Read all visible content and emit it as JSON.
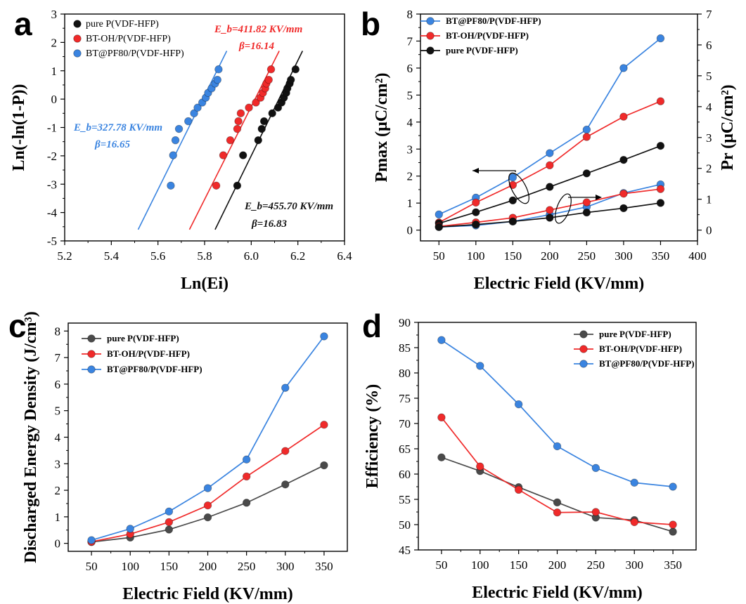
{
  "colors": {
    "black": "#111111",
    "red": "#f02a2a",
    "blue": "#3a84e0",
    "gray": "#4a4a4a"
  },
  "panels": [
    {
      "letter": "a",
      "type": "scatter",
      "xlabel": "Ln(Ei)",
      "ylabel": "Ln(-ln(1-P))",
      "xlim": [
        5.2,
        6.4
      ],
      "ylim": [
        -5,
        3
      ],
      "xticks": [
        "5.2",
        "5.4",
        "5.6",
        "5.8",
        "6.0",
        "6.2",
        "6.4"
      ],
      "yticks": [
        "-5",
        "-4",
        "-3",
        "-2",
        "-1",
        "0",
        "1",
        "2",
        "3"
      ],
      "legend": [
        "pure P(VDF-HFP)",
        "BT-OH/P(VDF-HFP)",
        "BT@PF80/P(VDF-HFP)"
      ],
      "annotations": [
        {
          "line1": "E_b=411.82 KV/mm",
          "line2": "β=16.14",
          "color": "red"
        },
        {
          "line1": "E_b=327.78 KV/mm",
          "line2": "β=16.65",
          "color": "blue"
        },
        {
          "line1": "E_b=455.70 KV/mm",
          "line2": "β=16.83",
          "color": "black"
        }
      ]
    },
    {
      "letter": "b",
      "type": "line",
      "xlabel": "Electric Field (KV/mm)",
      "ylabel": "Pmax (μC/cm²)",
      "ylabel_right": "Pr (μC/cm²)",
      "xlim": [
        25,
        400
      ],
      "ylim": [
        -0.4,
        8
      ],
      "ylim_right": [
        -0.35,
        7
      ],
      "xticks": [
        "50",
        "100",
        "150",
        "200",
        "250",
        "300",
        "350",
        "400"
      ],
      "yticks": [
        "0",
        "1",
        "2",
        "3",
        "4",
        "5",
        "6",
        "7",
        "8"
      ],
      "yticks_right": [
        "0",
        "1",
        "2",
        "3",
        "4",
        "5",
        "6",
        "7"
      ],
      "legend": [
        "BT@PF80/P(VDF-HFP)",
        "BT-OH/P(VDF-HFP)",
        "pure P(VDF-HFP)"
      ]
    },
    {
      "letter": "c",
      "type": "line",
      "xlabel": "Electric Field (KV/mm)",
      "ylabel": "Discharged Energy Density (J/cm³)",
      "xlim": [
        20,
        380
      ],
      "ylim": [
        -0.3,
        8.3
      ],
      "xticks": [
        "50",
        "100",
        "150",
        "200",
        "250",
        "300",
        "350"
      ],
      "yticks": [
        "0",
        "1",
        "2",
        "3",
        "4",
        "5",
        "6",
        "7",
        "8"
      ],
      "legend": [
        "pure P(VDF-HFP)",
        "BT-OH/P(VDF-HFP)",
        "BT@PF80/P(VDF-HFP)"
      ]
    },
    {
      "letter": "d",
      "type": "line",
      "xlabel": "Electric Field (KV/mm)",
      "ylabel": "Efficiency (%)",
      "xlim": [
        20,
        380
      ],
      "ylim": [
        45,
        90
      ],
      "xticks": [
        "50",
        "100",
        "150",
        "200",
        "250",
        "300",
        "350"
      ],
      "yticks": [
        "45",
        "50",
        "55",
        "60",
        "65",
        "70",
        "75",
        "80",
        "85",
        "90"
      ],
      "legend": [
        "pure P(VDF-HFP)",
        "BT-OH/P(VDF-HFP)",
        "BT@PF80/P(VDF-HFP)"
      ]
    }
  ],
  "chart_data": [
    {
      "panel": "a",
      "type": "scatter",
      "title": "",
      "xlabel": "Ln(Ei)",
      "ylabel": "Ln(-ln(1-P))",
      "xlim": [
        5.2,
        6.4
      ],
      "ylim": [
        -5,
        3
      ],
      "series": [
        {
          "name": "pure P(VDF-HFP)",
          "color": "black",
          "points": [
            [
              5.94,
              -3.05
            ],
            [
              5.965,
              -1.98
            ],
            [
              6.03,
              -1.45
            ],
            [
              6.045,
              -1.05
            ],
            [
              6.055,
              -0.78
            ],
            [
              6.09,
              -0.5
            ],
            [
              6.115,
              -0.3
            ],
            [
              6.13,
              -0.12
            ],
            [
              6.14,
              0.05
            ],
            [
              6.15,
              0.22
            ],
            [
              6.155,
              0.38
            ],
            [
              6.165,
              0.55
            ],
            [
              6.17,
              0.68
            ],
            [
              6.19,
              1.05
            ]
          ],
          "fit": [
            [
              5.845,
              -4.6
            ],
            [
              6.22,
              1.7
            ]
          ]
        },
        {
          "name": "BT-OH/P(VDF-HFP)",
          "color": "red",
          "points": [
            [
              5.85,
              -3.05
            ],
            [
              5.88,
              -1.98
            ],
            [
              5.91,
              -1.45
            ],
            [
              5.94,
              -1.05
            ],
            [
              5.945,
              -0.78
            ],
            [
              5.955,
              -0.5
            ],
            [
              5.99,
              -0.3
            ],
            [
              6.02,
              -0.12
            ],
            [
              6.04,
              0.05
            ],
            [
              6.05,
              0.22
            ],
            [
              6.06,
              0.38
            ],
            [
              6.065,
              0.55
            ],
            [
              6.075,
              0.68
            ],
            [
              6.085,
              1.05
            ]
          ],
          "fit": [
            [
              5.735,
              -4.6
            ],
            [
              6.12,
              1.7
            ]
          ]
        },
        {
          "name": "BT@PF80/P(VDF-HFP)",
          "color": "blue",
          "points": [
            [
              5.655,
              -3.05
            ],
            [
              5.665,
              -1.98
            ],
            [
              5.675,
              -1.45
            ],
            [
              5.69,
              -1.05
            ],
            [
              5.73,
              -0.78
            ],
            [
              5.755,
              -0.5
            ],
            [
              5.77,
              -0.3
            ],
            [
              5.79,
              -0.12
            ],
            [
              5.805,
              0.05
            ],
            [
              5.815,
              0.22
            ],
            [
              5.83,
              0.38
            ],
            [
              5.845,
              0.55
            ],
            [
              5.855,
              0.68
            ],
            [
              5.86,
              1.05
            ]
          ],
          "fit": [
            [
              5.515,
              -4.6
            ],
            [
              5.895,
              1.7
            ]
          ]
        }
      ]
    },
    {
      "panel": "b",
      "type": "line",
      "title": "",
      "xlabel": "Electric Field (KV/mm)",
      "ylabel": "Pmax (μC/cm²)",
      "ylabel_right": "Pr (μC/cm²)",
      "x": [
        50,
        100,
        150,
        200,
        250,
        300,
        350
      ],
      "xlim": [
        25,
        400
      ],
      "ylim": [
        -0.4,
        8
      ],
      "ylim_right": [
        -0.35,
        7
      ],
      "series": [
        {
          "name": "BT@PF80/P(VDF-HFP)",
          "color": "blue",
          "axis": "left",
          "values": [
            0.58,
            1.2,
            1.95,
            2.85,
            3.72,
            6.0,
            7.1
          ]
        },
        {
          "name": "BT-OH/P(VDF-HFP)",
          "color": "red",
          "axis": "left",
          "values": [
            0.28,
            1.02,
            1.67,
            2.4,
            3.45,
            4.2,
            4.77
          ]
        },
        {
          "name": "pure P(VDF-HFP)",
          "color": "black",
          "axis": "left",
          "values": [
            0.25,
            0.66,
            1.1,
            1.6,
            2.1,
            2.6,
            3.12
          ]
        },
        {
          "name": "BT@PF80/P(VDF-HFP) Pr",
          "color": "blue",
          "axis": "right",
          "values": [
            0.1,
            0.15,
            0.28,
            0.5,
            0.75,
            1.2,
            1.48
          ]
        },
        {
          "name": "BT-OH/P(VDF-HFP) Pr",
          "color": "red",
          "axis": "right",
          "values": [
            0.12,
            0.25,
            0.4,
            0.65,
            0.9,
            1.18,
            1.33
          ]
        },
        {
          "name": "pure P(VDF-HFP) Pr",
          "color": "black",
          "axis": "right",
          "values": [
            0.1,
            0.18,
            0.28,
            0.4,
            0.57,
            0.71,
            0.88
          ]
        }
      ]
    },
    {
      "panel": "c",
      "type": "line",
      "title": "",
      "xlabel": "Electric Field (KV/mm)",
      "ylabel": "Discharged Energy Density (J/cm³)",
      "x": [
        50,
        100,
        150,
        200,
        250,
        300,
        350
      ],
      "xlim": [
        20,
        380
      ],
      "ylim": [
        -0.3,
        8.3
      ],
      "series": [
        {
          "name": "pure P(VDF-HFP)",
          "color": "gray",
          "values": [
            0.05,
            0.22,
            0.52,
            0.98,
            1.53,
            2.22,
            2.94
          ]
        },
        {
          "name": "BT-OH/P(VDF-HFP)",
          "color": "red",
          "values": [
            0.06,
            0.35,
            0.8,
            1.43,
            2.52,
            3.48,
            4.47
          ]
        },
        {
          "name": "BT@PF80/P(VDF-HFP)",
          "color": "blue",
          "values": [
            0.12,
            0.55,
            1.2,
            2.08,
            3.16,
            5.86,
            7.8
          ]
        }
      ]
    },
    {
      "panel": "d",
      "type": "line",
      "title": "",
      "xlabel": "Electric Field (KV/mm)",
      "ylabel": "Efficiency (%)",
      "x": [
        50,
        100,
        150,
        200,
        250,
        300,
        350
      ],
      "xlim": [
        20,
        380
      ],
      "ylim": [
        45,
        90
      ],
      "series": [
        {
          "name": "pure P(VDF-HFP)",
          "color": "gray",
          "values": [
            63.3,
            60.6,
            57.4,
            54.4,
            51.4,
            50.9,
            48.6
          ]
        },
        {
          "name": "BT-OH/P(VDF-HFP)",
          "color": "red",
          "values": [
            71.2,
            61.5,
            56.9,
            52.4,
            52.5,
            50.5,
            50.0
          ]
        },
        {
          "name": "BT@PF80/P(VDF-HFP)",
          "color": "blue",
          "values": [
            86.5,
            81.4,
            73.8,
            65.5,
            61.2,
            58.3,
            57.5
          ]
        }
      ]
    }
  ]
}
